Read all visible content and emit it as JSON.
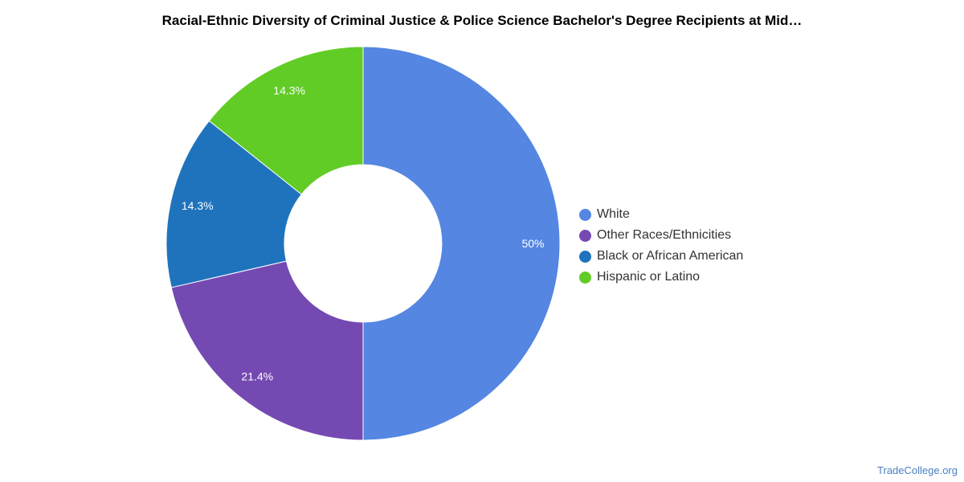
{
  "title": "Racial-Ethnic Diversity of Criminal Justice & Police Science Bachelor's Degree Recipients at Mid…",
  "source": "TradeCollege.org",
  "chart_data": {
    "type": "pie",
    "donut": true,
    "title": "Racial-Ethnic Diversity of Criminal Justice & Police Science Bachelor's Degree Recipients at Mid…",
    "legend_position": "right",
    "slices": [
      {
        "name": "White",
        "value": 50.0,
        "label": "50%",
        "color": "#5486e2"
      },
      {
        "name": "Other Races/Ethnicities",
        "value": 21.4,
        "label": "21.4%",
        "color": "#7549b2"
      },
      {
        "name": "Black or African American",
        "value": 14.3,
        "label": "14.3%",
        "color": "#1f73bd"
      },
      {
        "name": "Hispanic or Latino",
        "value": 14.3,
        "label": "14.3%",
        "color": "#61cc26"
      }
    ]
  }
}
